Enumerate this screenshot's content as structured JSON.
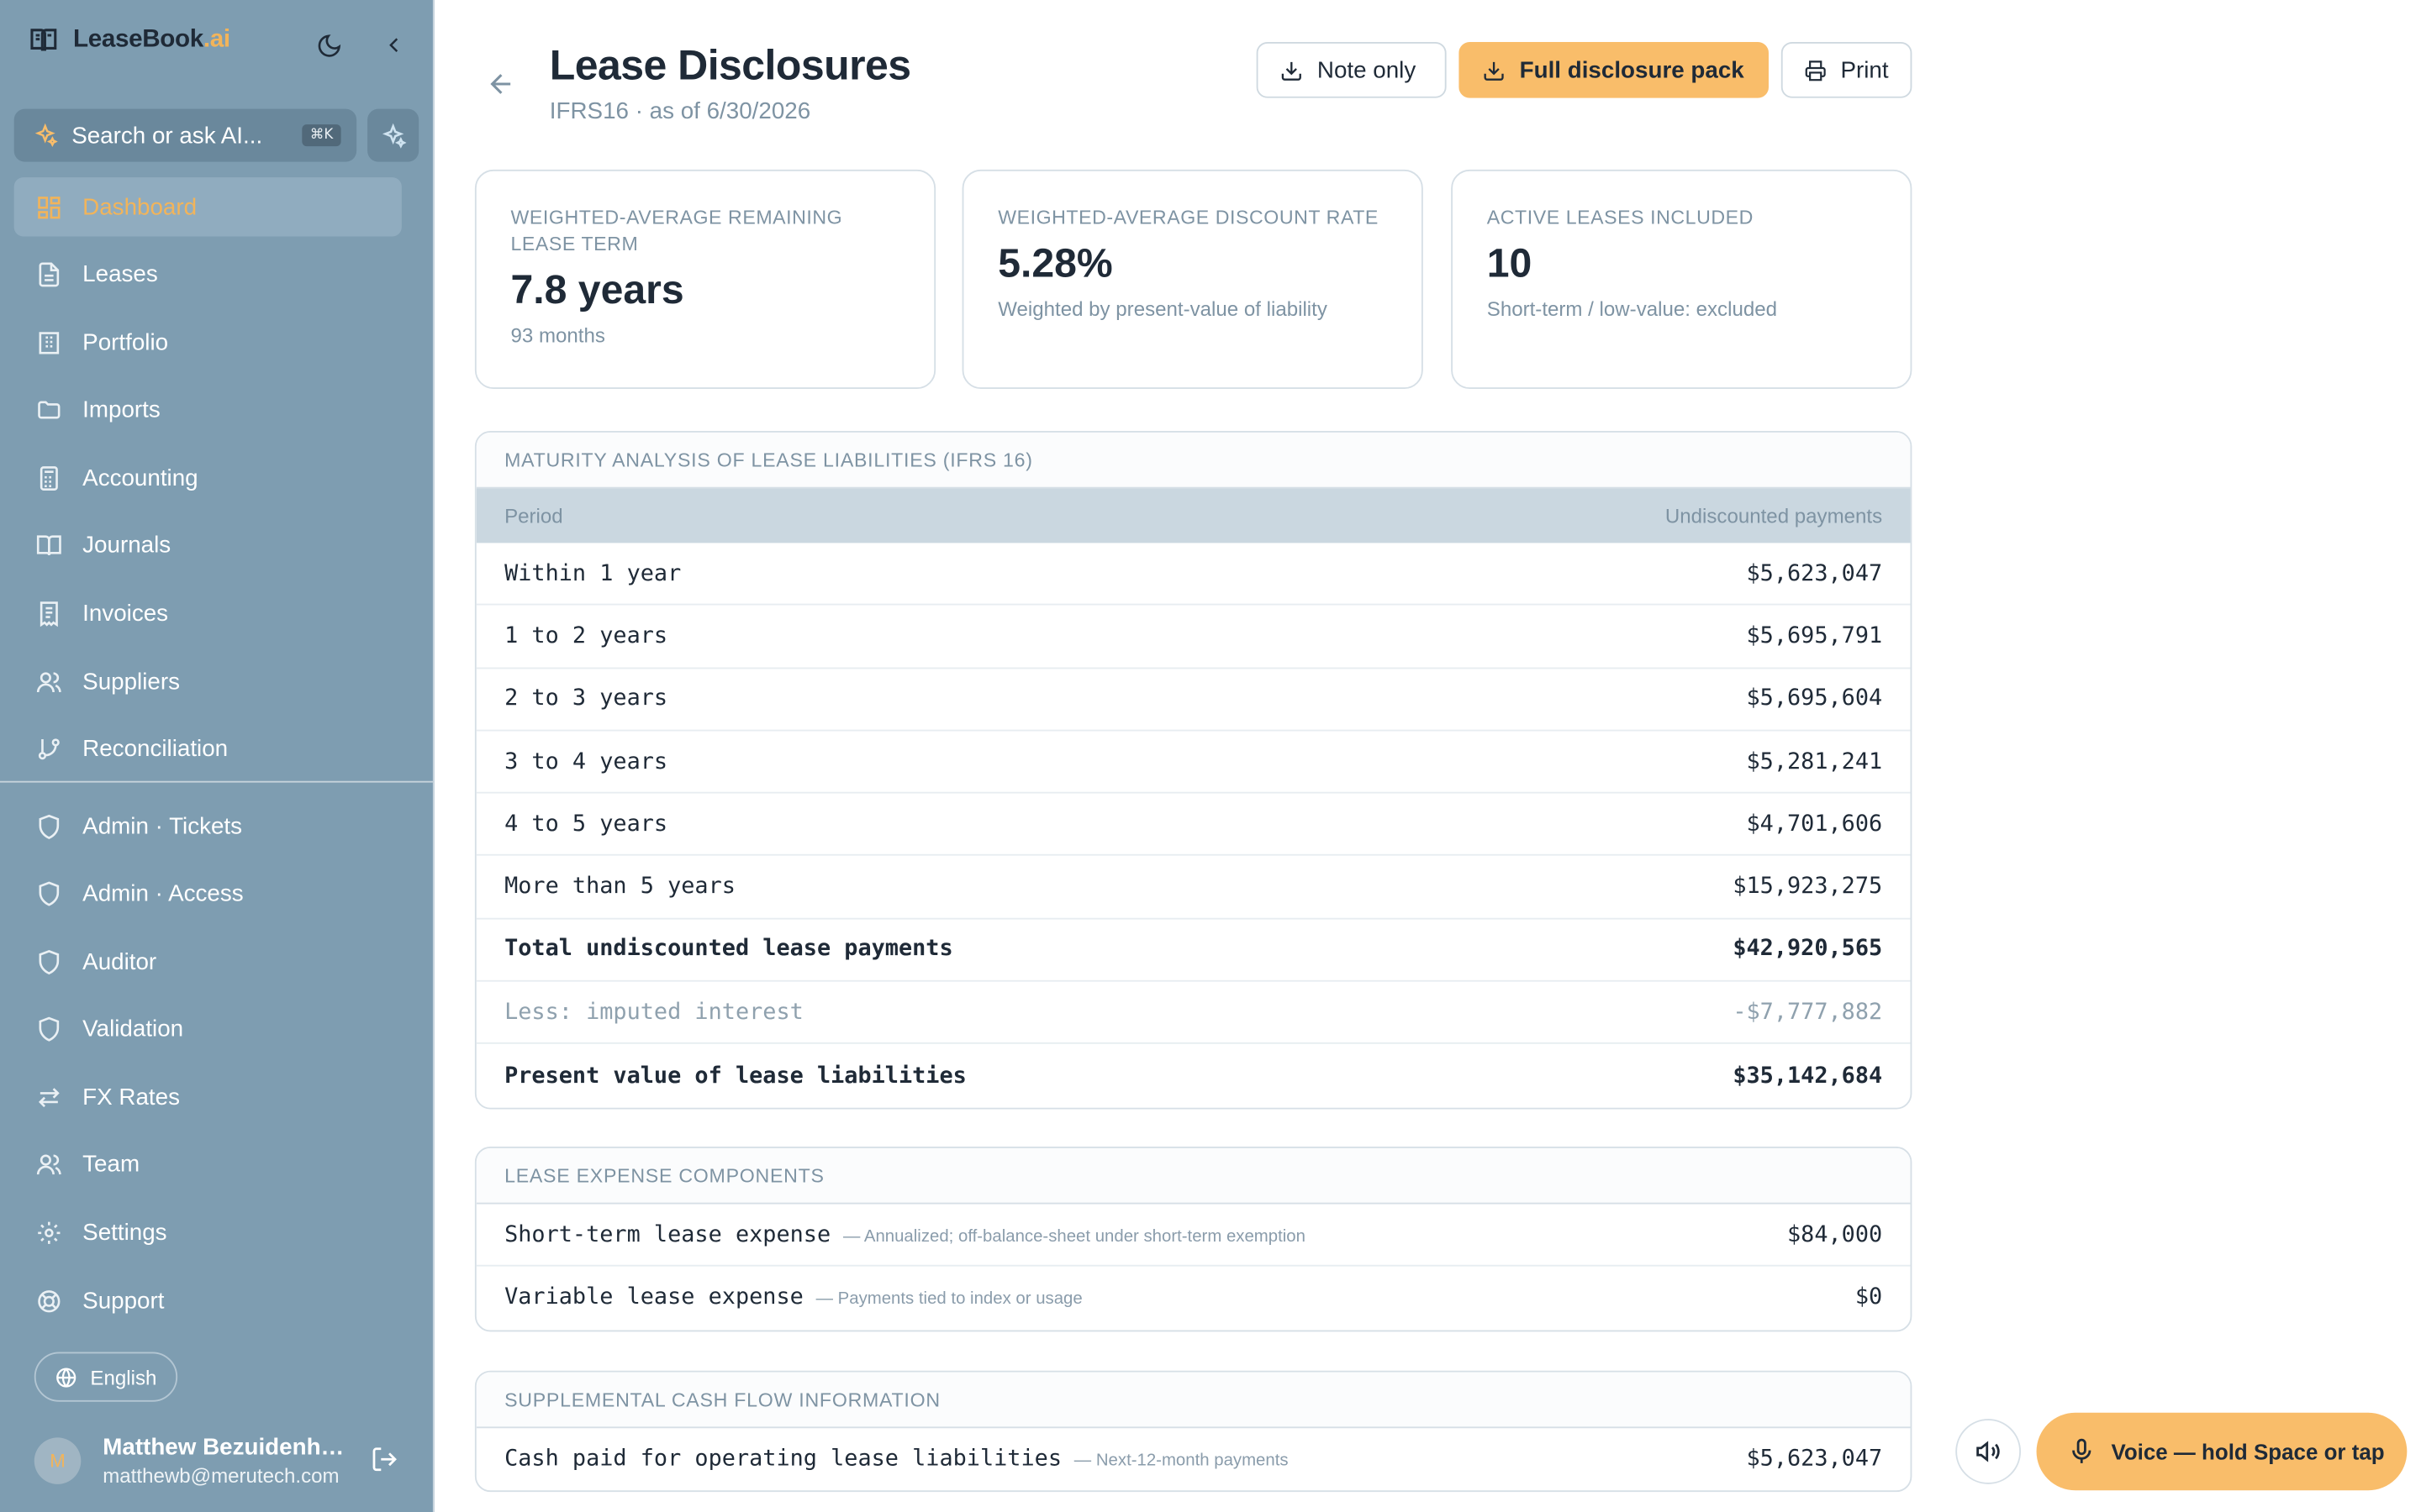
{
  "brand": {
    "name": "LeaseBook",
    "suffix": ".ai"
  },
  "search": {
    "text": "Search or ask AI...",
    "shortcut": "⌘K"
  },
  "nav": [
    {
      "label": "Dashboard",
      "icon": "dashboard-icon",
      "active": true
    },
    {
      "label": "Leases",
      "icon": "document-icon"
    },
    {
      "label": "Portfolio",
      "icon": "building-icon"
    },
    {
      "label": "Imports",
      "icon": "folder-icon"
    },
    {
      "label": "Accounting",
      "icon": "calculator-icon"
    },
    {
      "label": "Journals",
      "icon": "book-icon"
    },
    {
      "label": "Invoices",
      "icon": "receipt-icon"
    },
    {
      "label": "Suppliers",
      "icon": "users-icon"
    },
    {
      "label": "Reconciliation",
      "icon": "git-branch-icon"
    }
  ],
  "nav2": [
    {
      "label": "Admin · Tickets",
      "icon": "shield-icon"
    },
    {
      "label": "Admin · Access",
      "icon": "shield-icon"
    },
    {
      "label": "Auditor",
      "icon": "shield-icon"
    },
    {
      "label": "Validation",
      "icon": "shield-icon"
    },
    {
      "label": "FX Rates",
      "icon": "arrows-icon"
    },
    {
      "label": "Team",
      "icon": "users-icon"
    },
    {
      "label": "Settings",
      "icon": "gear-icon"
    },
    {
      "label": "Support",
      "icon": "lifebuoy-icon"
    }
  ],
  "language": "English",
  "user": {
    "initial": "M",
    "name": "Matthew Bezuidenhout",
    "email": "matthewb@merutech.com"
  },
  "header": {
    "title": "Lease Disclosures",
    "subtitle": "IFRS16 · as of 6/30/2026",
    "buttons": {
      "note_only": "Note only",
      "full_pack": "Full disclosure pack",
      "print": "Print"
    }
  },
  "kpis": [
    {
      "label": "Weighted-average remaining lease term",
      "value": "7.8 years",
      "note": "93 months"
    },
    {
      "label": "Weighted-average discount rate",
      "value": "5.28%",
      "note": "Weighted by present-value of liability"
    },
    {
      "label": "Active leases included",
      "value": "10",
      "note": "Short-term / low-value: excluded"
    }
  ],
  "maturity": {
    "title": "Maturity analysis of lease liabilities (IFRS 16)",
    "col_period": "Period",
    "col_amount": "Undiscounted payments",
    "rows": [
      {
        "period": "Within 1 year",
        "amount": "$5,623,047"
      },
      {
        "period": "1 to 2 years",
        "amount": "$5,695,791"
      },
      {
        "period": "2 to 3 years",
        "amount": "$5,695,604"
      },
      {
        "period": "3 to 4 years",
        "amount": "$5,281,241"
      },
      {
        "period": "4 to 5 years",
        "amount": "$4,701,606"
      },
      {
        "period": "More than 5 years",
        "amount": "$15,923,275"
      },
      {
        "period": "Total undiscounted lease payments",
        "amount": "$42,920,565",
        "style": "bold"
      },
      {
        "period": "Less: imputed interest",
        "amount": "-$7,777,882",
        "style": "muted"
      },
      {
        "period": "Present value of lease liabilities",
        "amount": "$35,142,684",
        "style": "bold"
      }
    ]
  },
  "expense": {
    "title": "Lease expense components",
    "rows": [
      {
        "label": "Short-term lease expense",
        "note": "— Annualized; off-balance-sheet under short-term exemption",
        "amount": "$84,000"
      },
      {
        "label": "Variable lease expense",
        "note": "— Payments tied to index or usage",
        "amount": "$0"
      }
    ]
  },
  "cashflow": {
    "title": "Supplemental cash flow information",
    "rows": [
      {
        "label": "Cash paid for operating lease liabilities",
        "note": "— Next-12-month payments",
        "amount": "$5,623,047"
      }
    ]
  },
  "voice": {
    "label": "Voice — hold Space or tap"
  }
}
